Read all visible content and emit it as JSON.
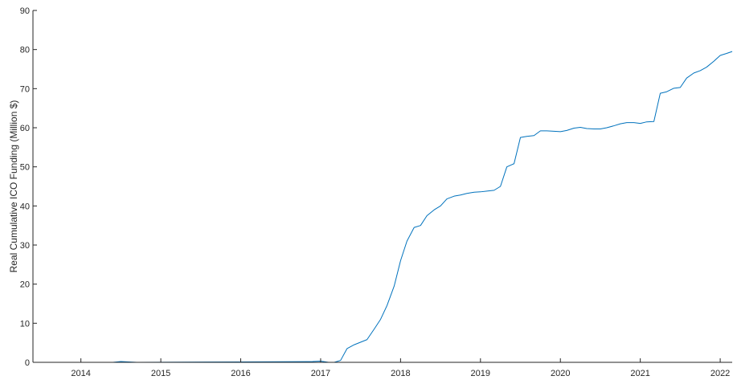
{
  "chart_data": {
    "type": "line",
    "title": "",
    "xlabel": "",
    "ylabel": "Real Cumulative ICO Funding (Million $)",
    "xlim": [
      2013.4,
      2022.15
    ],
    "ylim": [
      0,
      90
    ],
    "x_ticks": [
      2014,
      2015,
      2016,
      2017,
      2018,
      2019,
      2020,
      2021,
      2022
    ],
    "x_tick_labels": [
      "2014",
      "2015",
      "2016",
      "2017",
      "2018",
      "2019",
      "2020",
      "2021",
      "2022"
    ],
    "y_ticks": [
      0,
      10,
      20,
      30,
      40,
      50,
      60,
      70,
      80,
      90
    ],
    "y_tick_labels": [
      "0",
      "10",
      "20",
      "30",
      "40",
      "50",
      "60",
      "70",
      "80",
      "90"
    ],
    "grid": false,
    "line_color": "#0072BD",
    "series": [
      {
        "x": [
          2013.4,
          2014.4,
          2014.5,
          2014.7,
          2016.0,
          2016.9,
          2017.0,
          2017.1,
          2017.17,
          2017.25,
          2017.33,
          2017.42,
          2017.58,
          2017.67,
          2017.75,
          2017.83,
          2017.92,
          2018.0,
          2018.08,
          2018.17,
          2018.25,
          2018.33,
          2018.42,
          2018.5,
          2018.58,
          2018.67,
          2018.75,
          2018.83,
          2018.92,
          2019.0,
          2019.08,
          2019.17,
          2019.25,
          2019.33,
          2019.42,
          2019.5,
          2019.58,
          2019.67,
          2019.75,
          2019.83,
          2019.92,
          2020.0,
          2020.08,
          2020.17,
          2020.25,
          2020.33,
          2020.42,
          2020.5,
          2020.58,
          2020.67,
          2020.75,
          2020.83,
          2020.92,
          2021.0,
          2021.08,
          2021.17,
          2021.25,
          2021.33,
          2021.42,
          2021.5,
          2021.58,
          2021.67,
          2021.75,
          2021.83,
          2021.92,
          2022.0,
          2022.08,
          2022.15
        ],
        "y": [
          0.0,
          0.0,
          0.2,
          0.0,
          0.1,
          0.2,
          0.3,
          0.0,
          0.0,
          0.5,
          3.5,
          4.5,
          5.8,
          8.5,
          11.0,
          14.5,
          19.5,
          26.0,
          31.0,
          34.5,
          35.0,
          37.5,
          39.0,
          40.0,
          41.8,
          42.5,
          42.8,
          43.2,
          43.5,
          43.6,
          43.8,
          44.0,
          45.0,
          50.0,
          50.8,
          57.5,
          57.8,
          58.0,
          59.2,
          59.2,
          59.1,
          59.0,
          59.3,
          59.9,
          60.1,
          59.8,
          59.7,
          59.7,
          60.0,
          60.5,
          61.0,
          61.3,
          61.3,
          61.1,
          61.5,
          61.6,
          68.8,
          69.2,
          70.1,
          70.3,
          72.7,
          74.0,
          74.6,
          75.5,
          77.0,
          78.5,
          79.0,
          79.5
        ]
      }
    ]
  }
}
